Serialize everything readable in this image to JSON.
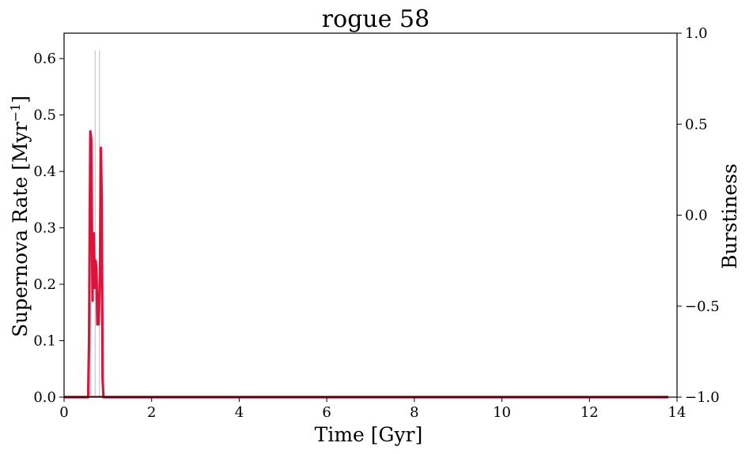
{
  "chart_data": {
    "type": "bar",
    "title": "rogue 58",
    "xlabel": "Time [Gyr]",
    "ylabel": "Supernova Rate [Myr",
    "ylabel_superscript": "−1",
    "ylabel_suffix": "]",
    "y2label": "Burstiness",
    "xlim": [
      0,
      14
    ],
    "ylim": [
      0,
      0.645
    ],
    "y2lim": [
      -1.0,
      1.0
    ],
    "x_ticks": [
      0,
      2,
      4,
      6,
      8,
      10,
      12,
      14
    ],
    "y_ticks": [
      0.0,
      0.1,
      0.2,
      0.3,
      0.4,
      0.5,
      0.6
    ],
    "y_tick_labels": [
      "0.0",
      "0.1",
      "0.2",
      "0.3",
      "0.4",
      "0.5",
      "0.6"
    ],
    "y2_ticks": [
      -1.0,
      -0.5,
      0.0,
      0.5,
      1.0
    ],
    "y2_tick_labels": [
      "−1.0",
      "−0.5",
      "0.0",
      "0.5",
      "1.0"
    ],
    "grid": false,
    "colors": {
      "bars": "#bbbbbb",
      "burstiness": "#dc143c",
      "baseline": "#8b0000"
    },
    "series": [
      {
        "kind": "histogram",
        "axis": "left",
        "bin_width": 0.1,
        "x": [
          0.6,
          0.7,
          0.8,
          0.9
        ],
        "values": [
          0.17,
          0.615,
          0.615,
          0.015
        ]
      },
      {
        "kind": "line",
        "axis": "right",
        "x": [
          0,
          0.55,
          0.57,
          0.6,
          0.62,
          0.65,
          0.66,
          0.68,
          0.7,
          0.72,
          0.74,
          0.76,
          0.79,
          0.82,
          0.84,
          0.86,
          0.88,
          0.9,
          13.8
        ],
        "y": [
          -1.0,
          -1.0,
          -0.7,
          0.46,
          0.42,
          -0.47,
          -0.1,
          -0.1,
          -0.4,
          -0.25,
          -0.3,
          -0.6,
          -0.6,
          -0.3,
          0.37,
          0.1,
          -0.9,
          -1.0,
          -1.0
        ]
      }
    ]
  }
}
